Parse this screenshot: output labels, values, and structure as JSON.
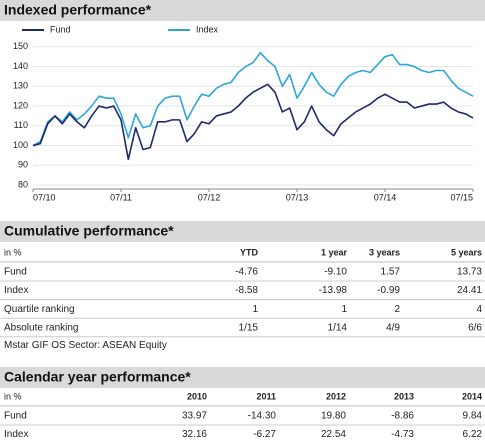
{
  "chart_data": {
    "type": "line",
    "title": "Indexed performance*",
    "categories": [
      "07/10",
      null,
      null,
      null,
      null,
      null,
      null,
      null,
      null,
      null,
      null,
      null,
      "07/11",
      null,
      null,
      null,
      null,
      null,
      null,
      null,
      null,
      null,
      null,
      null,
      "07/12",
      null,
      null,
      null,
      null,
      null,
      null,
      null,
      null,
      null,
      null,
      null,
      "07/13",
      null,
      null,
      null,
      null,
      null,
      null,
      null,
      null,
      null,
      null,
      null,
      "07/14",
      null,
      null,
      null,
      null,
      null,
      null,
      null,
      null,
      null,
      null,
      null,
      "07/15"
    ],
    "series": [
      {
        "name": "Fund",
        "color": "#1f2a6b",
        "values": [
          100,
          101,
          111,
          115,
          111,
          116,
          112,
          109,
          115,
          120,
          119,
          120,
          113,
          93,
          109,
          98,
          99,
          112,
          112,
          113,
          113,
          102,
          106,
          112,
          111,
          115,
          116,
          117,
          120,
          124,
          127,
          129,
          131,
          127,
          117,
          119,
          108,
          112,
          120,
          112,
          108,
          105,
          111,
          114,
          117,
          119,
          121,
          124,
          126,
          124,
          122,
          122,
          119,
          120,
          121,
          121,
          122,
          119,
          117,
          116,
          114
        ]
      },
      {
        "name": "Index",
        "color": "#2ea6dc",
        "values": [
          100,
          102,
          112,
          115,
          112,
          117,
          113,
          116,
          120,
          125,
          124,
          124,
          116,
          104,
          116,
          109,
          110,
          120,
          124,
          125,
          125,
          113,
          120,
          126,
          125,
          129,
          131,
          132,
          137,
          140,
          142,
          147,
          143,
          140,
          130,
          136,
          124,
          130,
          137,
          131,
          127,
          125,
          131,
          135,
          137,
          138,
          137,
          141,
          145,
          146,
          141,
          141,
          140,
          138,
          137,
          138,
          138,
          133,
          129,
          127,
          125
        ]
      }
    ],
    "ylim": [
      78,
      158
    ],
    "yticks": [
      80,
      90,
      100,
      110,
      120,
      130,
      140,
      150
    ],
    "grid": true
  },
  "cumulative": {
    "title": "Cumulative performance*",
    "unit": "in %",
    "columns": [
      "YTD",
      "1 year",
      "3 years",
      "5 years"
    ],
    "rows": [
      {
        "label": "Fund",
        "cells": [
          "-4.76",
          "-9.10",
          "1.57",
          "13.73"
        ]
      },
      {
        "label": "Index",
        "cells": [
          "-8.58",
          "-13.98",
          "-0.99",
          "24.41"
        ]
      },
      {
        "label": "Quartile ranking",
        "cells": [
          "1",
          "1",
          "2",
          "4"
        ]
      },
      {
        "label": "Absolute ranking",
        "cells": [
          "1/15",
          "1/14",
          "4/9",
          "6/6"
        ]
      }
    ],
    "note": "Mstar GIF OS Sector: ASEAN Equity"
  },
  "calendar": {
    "title": "Calendar year performance*",
    "unit": "in %",
    "columns": [
      "2010",
      "2011",
      "2012",
      "2013",
      "2014"
    ],
    "rows": [
      {
        "label": "Fund",
        "cells": [
          "33.97",
          "-14.30",
          "19.80",
          "-8.86",
          "9.84"
        ]
      },
      {
        "label": "Index",
        "cells": [
          "32.16",
          "-6.27",
          "22.54",
          "-4.73",
          "6.22"
        ]
      }
    ]
  }
}
